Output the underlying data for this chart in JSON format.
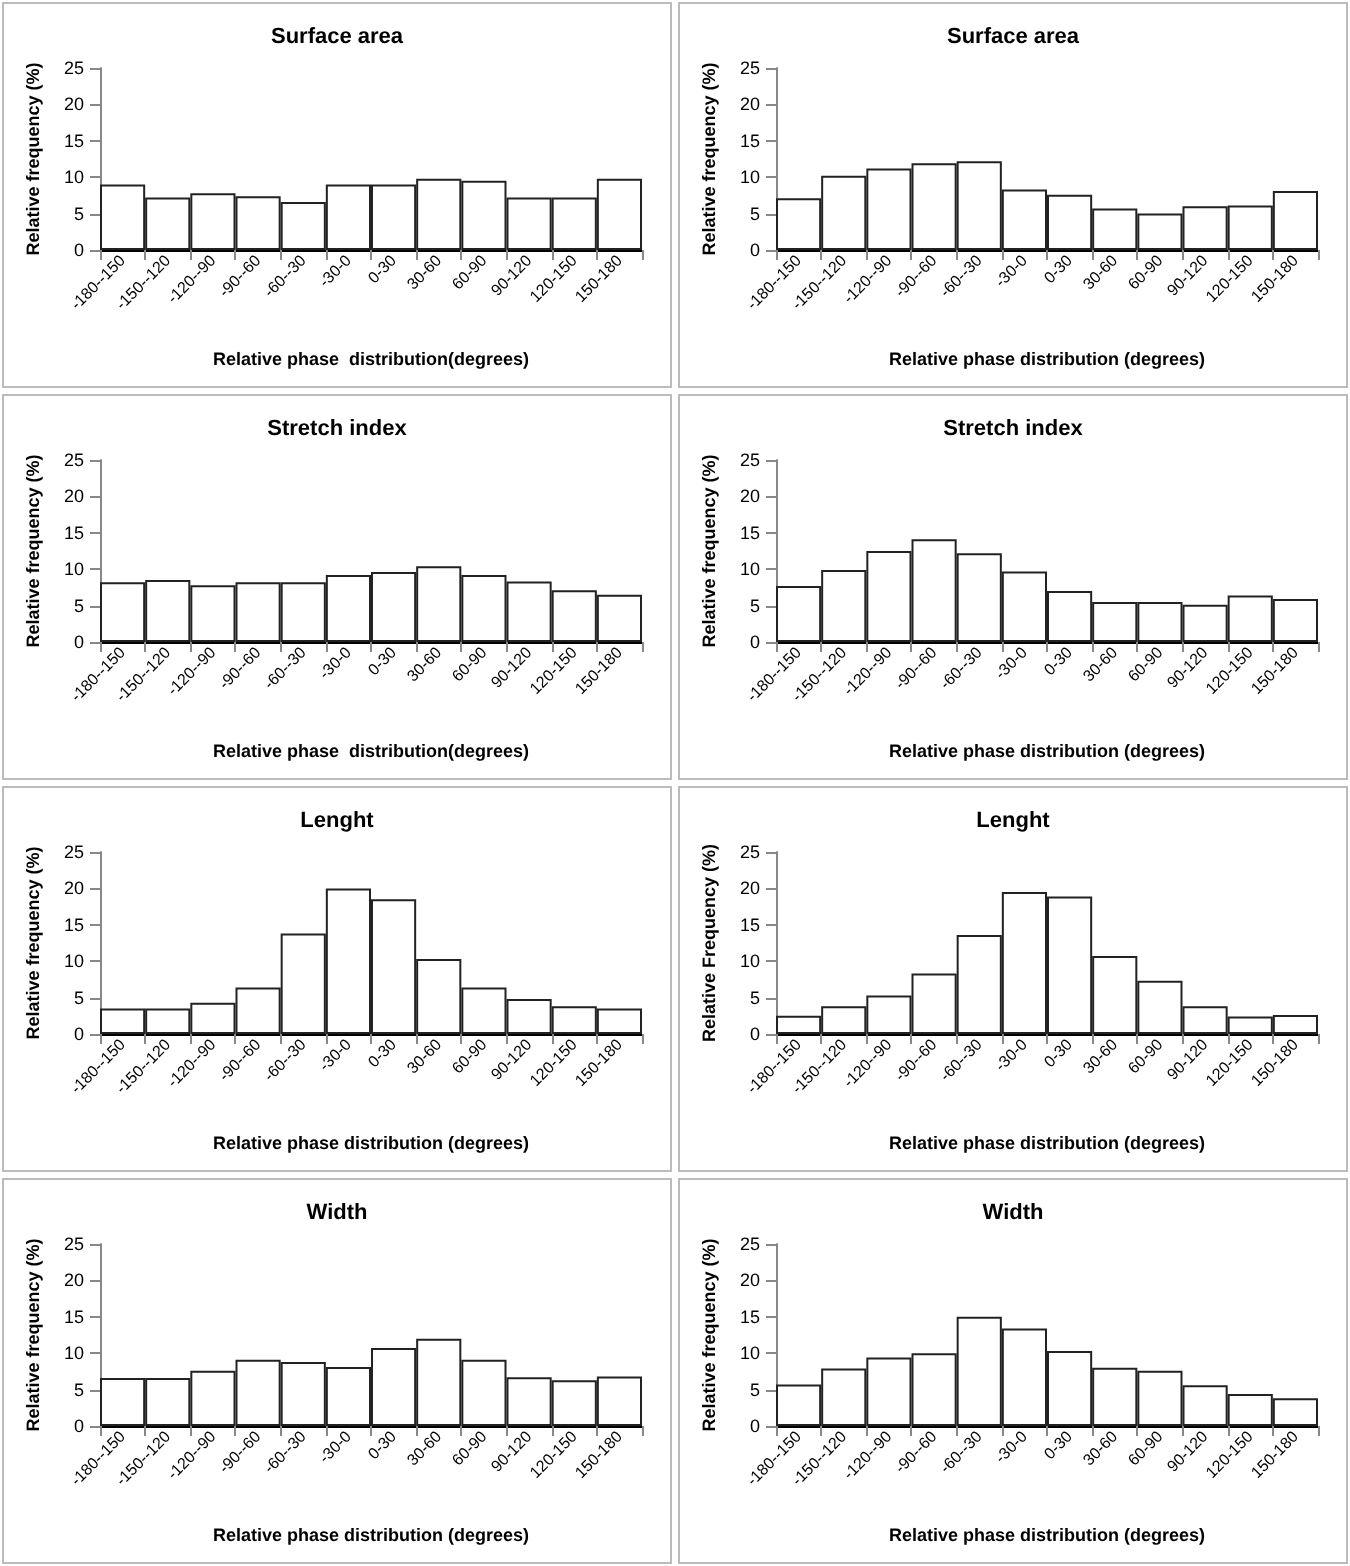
{
  "chart_data": [
    {
      "type": "bar",
      "title": "Surface area",
      "xlabel": "Relative phase  distribution(degrees)",
      "ylabel": "Relative frequency (%)",
      "categories": [
        "-180--150",
        "-150--120",
        "-120--90",
        "-90--60",
        "-60--30",
        "-30-0",
        "0-30",
        "30-60",
        "60-90",
        "90-120",
        "120-150",
        "150-180"
      ],
      "values": [
        9,
        7.2,
        7.8,
        7.4,
        6.6,
        9,
        9,
        9.8,
        9.5,
        7.2,
        7.2,
        9.8
      ],
      "color": "#ffffff",
      "ylim": [
        0,
        25
      ],
      "yticks": [
        0,
        5,
        10,
        15,
        20,
        25
      ],
      "grid": false
    },
    {
      "type": "bar",
      "title": "Surface area",
      "xlabel": "Relative phase distribution (degrees)",
      "ylabel": "Relative frequency (%)",
      "categories": [
        "-180--150",
        "-150--120",
        "-120--90",
        "-90--60",
        "-60--30",
        "-30-0",
        "0-30",
        "30-60",
        "60-90",
        "90-120",
        "120-150",
        "150-180"
      ],
      "values": [
        7.1,
        10.2,
        11.2,
        11.9,
        12.2,
        8.3,
        7.6,
        5.7,
        5,
        6,
        6.1,
        8.1
      ],
      "color": "#ffffff",
      "ylim": [
        0,
        25
      ],
      "yticks": [
        0,
        5,
        10,
        15,
        20,
        25
      ],
      "grid": false
    },
    {
      "type": "bar",
      "title": "Stretch index",
      "xlabel": "Relative phase  distribution(degrees)",
      "ylabel": "Relative frequency (%)",
      "categories": [
        "-180--150",
        "-150--120",
        "-120--90",
        "-90--60",
        "-60--30",
        "-30-0",
        "0-30",
        "30-60",
        "60-90",
        "90-120",
        "120-150",
        "150-180"
      ],
      "values": [
        8.2,
        8.5,
        7.8,
        8.2,
        8.2,
        9.2,
        9.6,
        10.4,
        9.2,
        8.3,
        7.1,
        6.5
      ],
      "color": "#ffffff",
      "ylim": [
        0,
        25
      ],
      "yticks": [
        0,
        5,
        10,
        15,
        20,
        25
      ],
      "grid": false
    },
    {
      "type": "bar",
      "title": "Stretch index",
      "xlabel": "Relative phase distribution (degrees)",
      "ylabel": "Relative frequency (%)",
      "categories": [
        "-180--150",
        "-150--120",
        "-120--90",
        "-90--60",
        "-60--30",
        "-30-0",
        "0-30",
        "30-60",
        "60-90",
        "90-120",
        "120-150",
        "150-180"
      ],
      "values": [
        7.7,
        9.9,
        12.5,
        14.1,
        12.2,
        9.7,
        7,
        5.5,
        5.5,
        5.1,
        6.4,
        5.9
      ],
      "color": "#ffffff",
      "ylim": [
        0,
        25
      ],
      "yticks": [
        0,
        5,
        10,
        15,
        20,
        25
      ],
      "grid": false
    },
    {
      "type": "bar",
      "title": "Lenght",
      "xlabel": "Relative phase distribution (degrees)",
      "ylabel": "Relative frequency (%)",
      "categories": [
        "-180--150",
        "-150--120",
        "-120--90",
        "-90--60",
        "-60--30",
        "-30-0",
        "0-30",
        "30-60",
        "60-90",
        "90-120",
        "120-150",
        "150-180"
      ],
      "values": [
        3.5,
        3.5,
        4.3,
        6.4,
        13.8,
        20,
        18.5,
        10.3,
        6.4,
        4.8,
        3.8,
        3.5
      ],
      "color": "#ffffff",
      "ylim": [
        0,
        25
      ],
      "yticks": [
        0,
        5,
        10,
        15,
        20,
        25
      ],
      "grid": false
    },
    {
      "type": "bar",
      "title": "Lenght",
      "xlabel": "Relative phase distribution (degrees)",
      "ylabel": "Relative Frequency (%)",
      "categories": [
        "-180--150",
        "-150--120",
        "-120--90",
        "-90--60",
        "-60--30",
        "-30-0",
        "0-30",
        "30-60",
        "60-90",
        "90-120",
        "120-150",
        "150-180"
      ],
      "values": [
        2.5,
        3.8,
        5.3,
        8.3,
        13.6,
        19.5,
        18.9,
        10.7,
        7.3,
        3.8,
        2.4,
        2.6
      ],
      "color": "#ffffff",
      "ylim": [
        0,
        25
      ],
      "yticks": [
        0,
        5,
        10,
        15,
        20,
        25
      ],
      "grid": false
    },
    {
      "type": "bar",
      "title": "Width",
      "xlabel": "Relative phase distribution (degrees)",
      "ylabel": "Relative frequency (%)",
      "categories": [
        "-180--150",
        "-150--120",
        "-120--90",
        "-90--60",
        "-60--30",
        "-30-0",
        "0-30",
        "30-60",
        "60-90",
        "90-120",
        "120-150",
        "150-180"
      ],
      "values": [
        6.6,
        6.6,
        7.6,
        9.1,
        8.8,
        8.1,
        10.7,
        12,
        9.1,
        6.7,
        6.3,
        6.8
      ],
      "color": "#ffffff",
      "ylim": [
        0,
        25
      ],
      "yticks": [
        0,
        5,
        10,
        15,
        20,
        25
      ],
      "grid": false
    },
    {
      "type": "bar",
      "title": "Width",
      "xlabel": "Relative phase distribution (degrees)",
      "ylabel": "Relative frequency (%)",
      "categories": [
        "-180--150",
        "-150--120",
        "-120--90",
        "-90--60",
        "-60--30",
        "-30-0",
        "0-30",
        "30-60",
        "60-90",
        "90-120",
        "120-150",
        "150-180"
      ],
      "values": [
        5.7,
        7.9,
        9.4,
        10,
        15,
        13.4,
        10.3,
        8,
        7.6,
        5.6,
        4.4,
        3.8
      ],
      "color": "#ffffff",
      "ylim": [
        0,
        25
      ],
      "yticks": [
        0,
        5,
        10,
        15,
        20,
        25
      ],
      "grid": false
    }
  ]
}
